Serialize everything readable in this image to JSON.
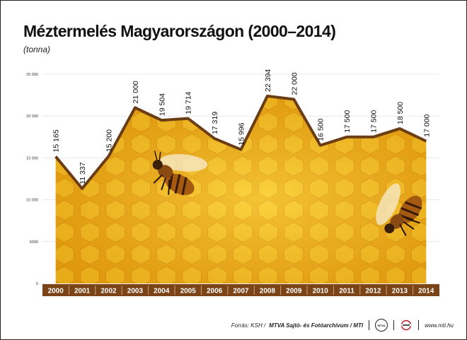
{
  "title": "Méztermelés Magyarországon (2000–2014)",
  "subtitle": "(tonna)",
  "footer": {
    "source_prefix": "Forrás: KSH / ",
    "source_agency": "MTVA Sajtó- és Fotóarchívum / MTI",
    "logo_mtva_text": "MTVA",
    "website": "www.mti.hu"
  },
  "colors": {
    "line": "#6b3d14",
    "honeycomb": "#f2b312",
    "axis_bar": "#7a4417",
    "grid": "#e8e8e8"
  },
  "chart_data": {
    "type": "area",
    "title": "Méztermelés Magyarországon (2000–2014)",
    "subtitle": "(tonna)",
    "xlabel": "",
    "ylabel": "",
    "ylim": [
      0,
      25000
    ],
    "yticks": [
      0,
      5000,
      10000,
      15000,
      20000,
      25000
    ],
    "ytick_labels": [
      "0",
      "5000",
      "10 000",
      "15 000",
      "20 000",
      "25 000"
    ],
    "grid": true,
    "categories": [
      "2000",
      "2001",
      "2002",
      "2003",
      "2004",
      "2005",
      "2006",
      "2007",
      "2008",
      "2009",
      "2010",
      "2011",
      "2012",
      "2013",
      "2014"
    ],
    "values": [
      15165,
      11337,
      15200,
      21000,
      19504,
      19714,
      17319,
      15996,
      22394,
      22000,
      16500,
      17500,
      17500,
      18500,
      17000
    ],
    "value_labels": [
      "15 165",
      "11 337",
      "15 200",
      "21 000",
      "19 504",
      "19 714",
      "17 319",
      "15 996",
      "22 394",
      "22 000",
      "16 500",
      "17 500",
      "17 500",
      "18 500",
      "17 000"
    ]
  }
}
